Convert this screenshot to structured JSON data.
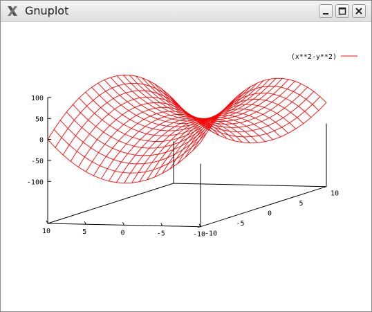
{
  "window": {
    "title": "Gnuplot",
    "icon": "x-window-icon",
    "buttons": {
      "minimize": "minimize-icon",
      "maximize": "maximize-icon",
      "close": "close-icon"
    }
  },
  "chart_data": {
    "type": "surface",
    "function": "x**2-y**2",
    "legend": {
      "label": "(x**2-y**2)",
      "position": "top-right",
      "color": "#ff0000"
    },
    "x_range": [
      -10,
      10
    ],
    "y_range": [
      -10,
      10
    ],
    "x_ticks": [
      10,
      5,
      0,
      -5,
      -10
    ],
    "y_ticks": [
      -10,
      -5,
      0,
      5,
      10
    ],
    "z_ticks": [
      100,
      50,
      0,
      -50,
      -100
    ],
    "iso_samples": 21,
    "colors": {
      "surface": "#ff0000",
      "axes": "#000000"
    }
  }
}
